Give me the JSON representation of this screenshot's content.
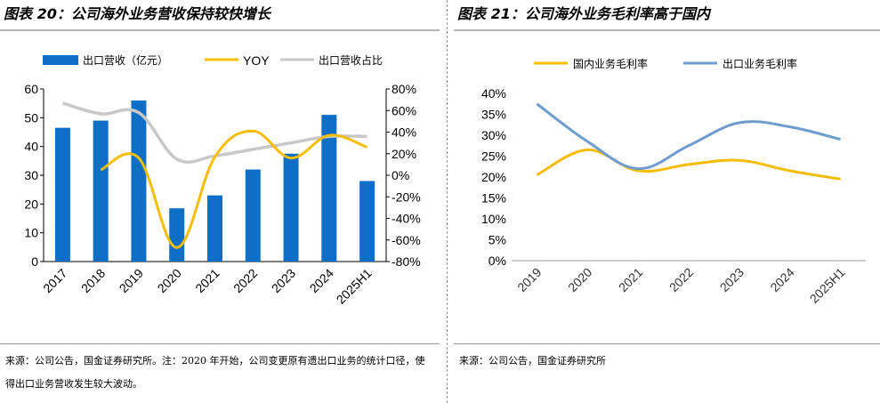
{
  "left_panel": {
    "title": "图表 20：公司海外业务营收保持较快增长",
    "source": "来源：公司公告，国金证券研究所。注：2020 年开始，公司变更原有遗出口业务的统计口径，使得出口业务营收发生较大波动。"
  },
  "right_panel": {
    "title": "图表 21：公司海外业务毛利率高于国内",
    "source": "来源：公司公告，国金证券研究所"
  },
  "colors": {
    "bar": "#0f6fc6",
    "yoy": "#f5bd05",
    "share": "#c8c8c8",
    "domestic": "#f5bd05",
    "overseas": "#6e9ccf"
  },
  "chart_data": [
    {
      "type": "bar",
      "categories": [
        "2017",
        "2018",
        "2019",
        "2020",
        "2021",
        "2022",
        "2023",
        "2024",
        "2025H1"
      ],
      "ylim": [
        0,
        60
      ],
      "yticks": [
        "0",
        "10",
        "20",
        "30",
        "40",
        "50",
        "60"
      ],
      "y2lim": [
        -80,
        80
      ],
      "y2ticks": [
        "-80%",
        "-60%",
        "-40%",
        "-20%",
        "0%",
        "20%",
        "40%",
        "60%",
        "80%"
      ],
      "legend": [
        "出口营收（亿元）",
        "YOY",
        "出口营收占比"
      ],
      "series": [
        {
          "name": "出口营收（亿元）",
          "type": "bar",
          "axis": "left",
          "values": [
            46.5,
            49,
            56,
            18.5,
            23,
            32,
            37.5,
            51,
            28
          ]
        },
        {
          "name": "YOY",
          "type": "line",
          "axis": "right",
          "values": [
            null,
            5,
            16,
            -67,
            17,
            41,
            16,
            37,
            26
          ]
        },
        {
          "name": "出口营收占比",
          "type": "line",
          "axis": "right",
          "values": [
            67,
            57,
            58,
            15,
            18,
            24,
            30,
            36,
            36
          ]
        }
      ]
    },
    {
      "type": "line",
      "categories": [
        "2019",
        "2020",
        "2021",
        "2022",
        "2023",
        "2024",
        "2025H1"
      ],
      "ylim": [
        0,
        40
      ],
      "yticks": [
        "0%",
        "5%",
        "10%",
        "15%",
        "20%",
        "25%",
        "30%",
        "35%",
        "40%"
      ],
      "legend": [
        "国内业务毛利率",
        "出口业务毛利率"
      ],
      "series": [
        {
          "name": "国内业务毛利率",
          "values": [
            20.5,
            26.5,
            21.5,
            23,
            24,
            21.5,
            19.5
          ]
        },
        {
          "name": "出口业务毛利率",
          "values": [
            37.5,
            28.5,
            22,
            27.5,
            33,
            32,
            29
          ]
        }
      ]
    }
  ]
}
